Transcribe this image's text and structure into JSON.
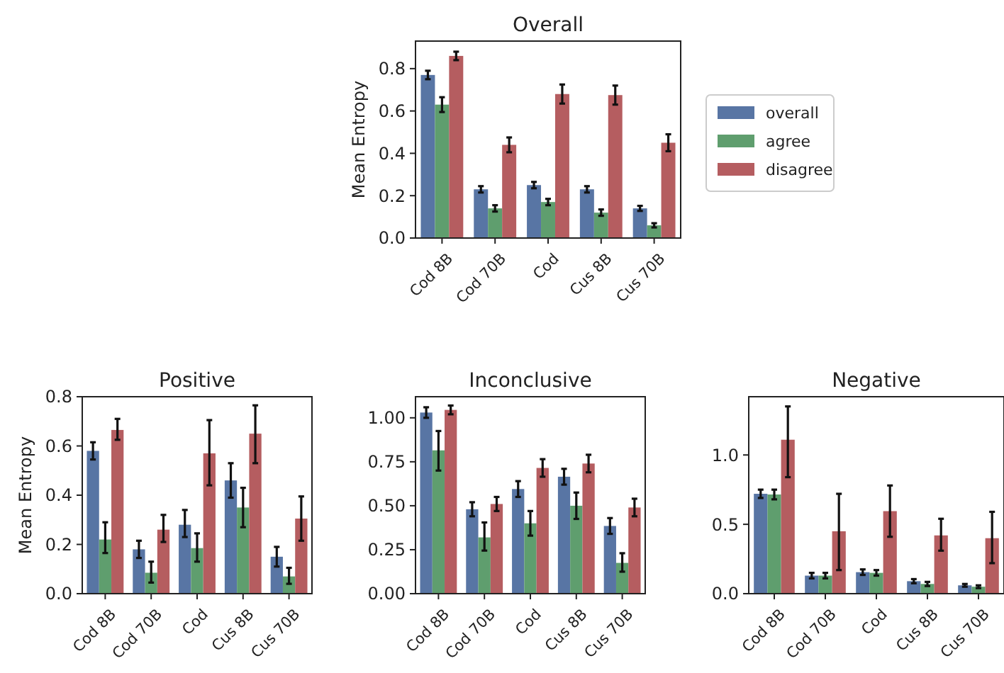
{
  "chart_data": [
    {
      "type": "bar",
      "title": "Overall",
      "ylabel": "Mean Entropy",
      "categories": [
        "Cod 8B",
        "Cod 70B",
        "Cod",
        "Cus 8B",
        "Cus 70B"
      ],
      "ylim": [
        0,
        0.93
      ],
      "yticks": [
        {
          "value": 0,
          "label": "0.0"
        },
        0.2,
        0.4,
        0.6,
        0.8
      ],
      "legend": "right",
      "series": [
        {
          "name": "overall",
          "color": "#5875a4",
          "values": [
            0.77,
            0.23,
            0.25,
            0.23,
            0.14
          ],
          "errors": [
            0.02,
            0.015,
            0.015,
            0.015,
            0.012
          ]
        },
        {
          "name": "agree",
          "color": "#5f9e6e",
          "values": [
            0.63,
            0.14,
            0.17,
            0.12,
            0.06
          ],
          "errors": [
            0.035,
            0.015,
            0.015,
            0.015,
            0.01
          ]
        },
        {
          "name": "disagree",
          "color": "#b55d60",
          "values": [
            0.86,
            0.44,
            0.68,
            0.675,
            0.45
          ],
          "errors": [
            0.02,
            0.035,
            0.045,
            0.045,
            0.04
          ]
        }
      ]
    },
    {
      "type": "bar",
      "title": "Positive",
      "ylabel": "Mean Entropy",
      "categories": [
        "Cod 8B",
        "Cod 70B",
        "Cod",
        "Cus 8B",
        "Cus 70B"
      ],
      "ylim": [
        0,
        0.8
      ],
      "yticks": [
        {
          "value": 0,
          "label": "0.0"
        },
        0.2,
        0.4,
        0.6,
        0.8
      ],
      "series": [
        {
          "color": "#5875a4",
          "values": [
            0.58,
            0.18,
            0.28,
            0.46,
            0.15
          ],
          "errors": [
            [
              0.545,
              0.615
            ],
            [
              0.145,
              0.215
            ],
            [
              0.23,
              0.34
            ],
            [
              0.39,
              0.53
            ],
            [
              0.11,
              0.19
            ]
          ]
        },
        {
          "color": "#5f9e6e",
          "values": [
            0.22,
            0.085,
            0.185,
            0.35,
            0.07
          ],
          "errors": [
            [
              0.165,
              0.29
            ],
            [
              0.045,
              0.13
            ],
            [
              0.13,
              0.245
            ],
            [
              0.27,
              0.43
            ],
            [
              0.04,
              0.105
            ]
          ]
        },
        {
          "color": "#b55d60",
          "values": [
            0.665,
            0.26,
            0.57,
            0.65,
            0.305
          ],
          "errors": [
            [
              0.625,
              0.71
            ],
            [
              0.21,
              0.32
            ],
            [
              0.44,
              0.705
            ],
            [
              0.53,
              0.765
            ],
            [
              0.215,
              0.395
            ]
          ]
        }
      ]
    },
    {
      "type": "bar",
      "title": "Inconclusive",
      "categories": [
        "Cod 8B",
        "Cod 70B",
        "Cod",
        "Cus 8B",
        "Cus 70B"
      ],
      "ylim": [
        0,
        1.12
      ],
      "yticks": [
        {
          "value": 0,
          "label": "0.00"
        },
        0.25,
        {
          "value": 0.5,
          "label": "0.50"
        },
        0.75,
        {
          "value": 1,
          "label": "1.00"
        }
      ],
      "series": [
        {
          "color": "#5875a4",
          "values": [
            1.03,
            0.48,
            0.595,
            0.665,
            0.385
          ],
          "errors": [
            0.03,
            0.04,
            0.045,
            0.045,
            0.045
          ]
        },
        {
          "color": "#5f9e6e",
          "values": [
            0.815,
            0.32,
            0.4,
            0.5,
            0.175
          ],
          "errors": [
            [
              0.7,
              0.925
            ],
            [
              0.245,
              0.405
            ],
            [
              0.33,
              0.47
            ],
            [
              0.425,
              0.575
            ],
            [
              0.125,
              0.23
            ]
          ]
        },
        {
          "color": "#b55d60",
          "values": [
            1.045,
            0.51,
            0.715,
            0.74,
            0.49
          ],
          "errors": [
            0.025,
            0.04,
            0.05,
            0.05,
            0.05
          ]
        }
      ]
    },
    {
      "type": "bar",
      "title": "Negative",
      "categories": [
        "Cod 8B",
        "Cod 70B",
        "Cod",
        "Cus 8B",
        "Cus 70B"
      ],
      "ylim": [
        0,
        1.42
      ],
      "yticks": [
        {
          "value": 0,
          "label": "0.0"
        },
        0.5,
        {
          "value": 1,
          "label": "1.0"
        }
      ],
      "series": [
        {
          "color": "#5875a4",
          "values": [
            0.72,
            0.13,
            0.155,
            0.09,
            0.06
          ],
          "errors": [
            0.03,
            0.02,
            0.02,
            0.015,
            0.01
          ]
        },
        {
          "color": "#5f9e6e",
          "values": [
            0.715,
            0.13,
            0.15,
            0.07,
            0.05
          ],
          "errors": [
            0.035,
            0.02,
            0.02,
            0.015,
            0.01
          ]
        },
        {
          "color": "#b55d60",
          "values": [
            1.11,
            0.45,
            0.595,
            0.42,
            0.4
          ],
          "errors": [
            [
              0.84,
              1.35
            ],
            [
              0.17,
              0.72
            ],
            [
              0.41,
              0.78
            ],
            [
              0.31,
              0.54
            ],
            [
              0.22,
              0.59
            ]
          ]
        }
      ]
    }
  ]
}
